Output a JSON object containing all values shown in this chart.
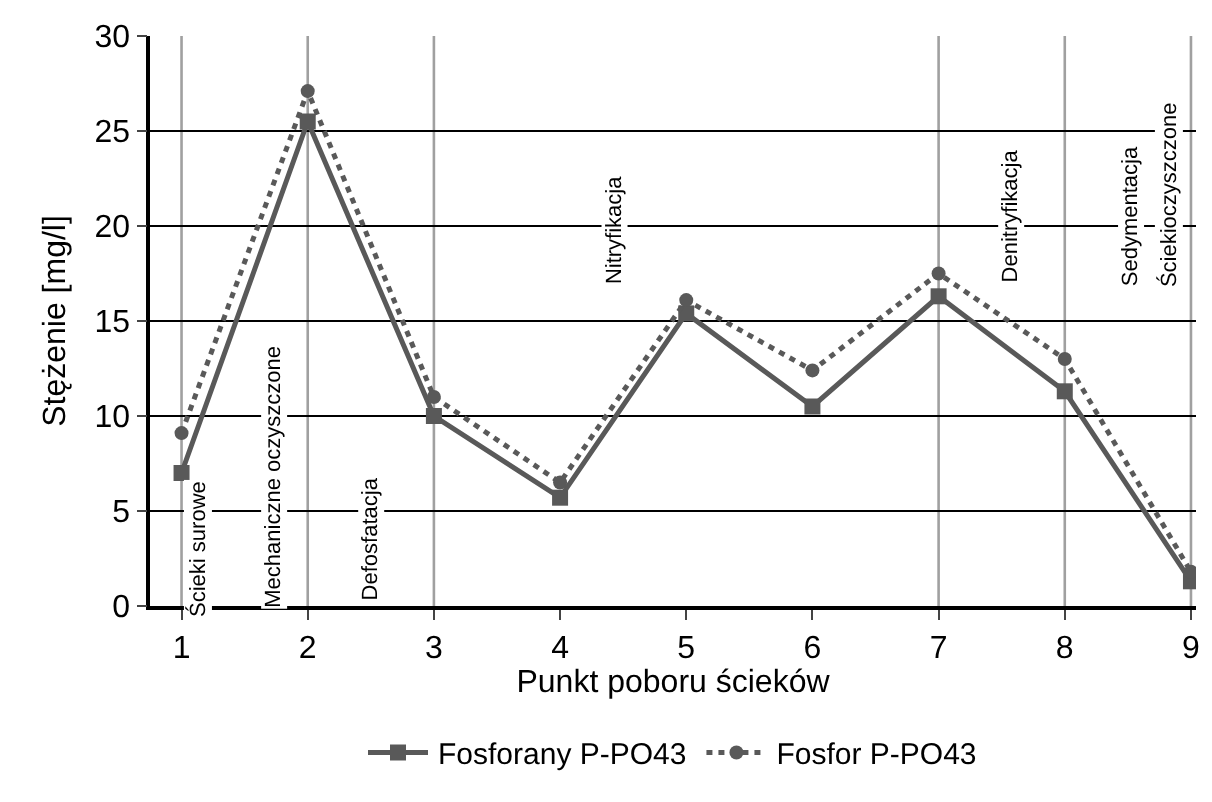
{
  "chart_data": {
    "type": "line",
    "xlabel": "Punkt poboru ścieków",
    "ylabel": "Stężenie [mg/l]",
    "x": [
      1,
      2,
      3,
      4,
      5,
      6,
      7,
      8,
      9
    ],
    "series": [
      {
        "name": "Fosforany P-PO43",
        "color": "#595959",
        "marker": "square",
        "line_style": "solid",
        "values": [
          7.0,
          25.5,
          10,
          5.7,
          15.4,
          10.5,
          16.3,
          11.3,
          1.3
        ]
      },
      {
        "name": "Fosfor P-PO43",
        "color": "#595959",
        "marker": "circle",
        "line_style": "dotted",
        "values": [
          9.1,
          27.1,
          11,
          6.5,
          16.1,
          12.4,
          17.5,
          13,
          1.8
        ]
      }
    ],
    "xlim": [
      0.75,
      9.04
    ],
    "xticks": [
      1,
      2,
      3,
      4,
      5,
      6,
      7,
      8,
      9
    ],
    "ylim": [
      0,
      30
    ],
    "yticks": [
      0,
      5,
      10,
      15,
      20,
      25,
      30
    ],
    "grid": "y",
    "legend": "bottom",
    "ref_lines": [
      {
        "axis": "x",
        "value": 1,
        "color": "#a0a0a0"
      },
      {
        "axis": "x",
        "value": 2,
        "color": "#a0a0a0"
      },
      {
        "axis": "x",
        "value": 3,
        "color": "#a0a0a0"
      },
      {
        "axis": "x",
        "value": 7,
        "color": "#a0a0a0"
      },
      {
        "axis": "x",
        "value": 8,
        "color": "#a0a0a0"
      },
      {
        "axis": "x",
        "value": 9,
        "color": "#a0a0a0"
      }
    ],
    "annotations": [
      "Ścieki surowe",
      "Mechaniczne oczyszczone",
      "Defosfatacja",
      "Nitryfikacja",
      "Denitryfikacja",
      "Sedymentacja",
      "Ściekioczyszczone"
    ]
  }
}
